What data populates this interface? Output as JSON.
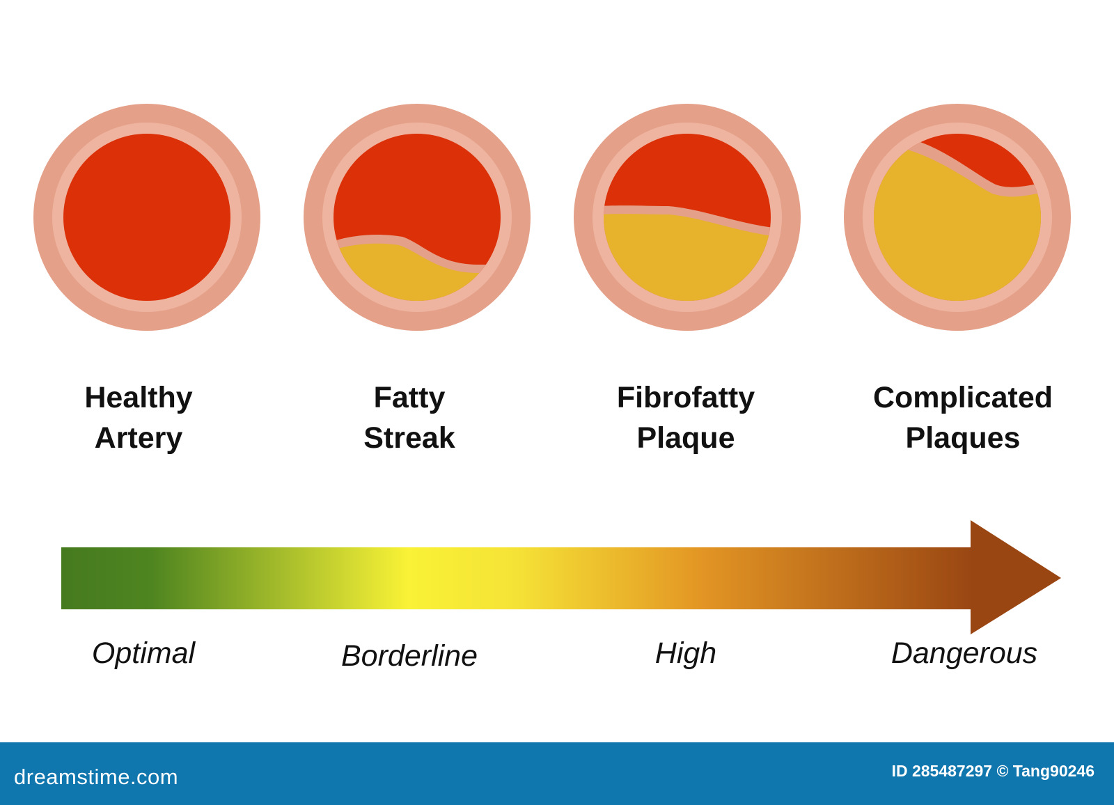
{
  "stages": [
    {
      "line1": "Healthy",
      "line2": "Artery",
      "plaque_fraction": 0
    },
    {
      "line1": "Fatty",
      "line2": "Streak",
      "plaque_fraction": 0.3
    },
    {
      "line1": "Fibrofatty",
      "line2": "Plaque",
      "plaque_fraction": 0.55
    },
    {
      "line1": "Complicated",
      "line2": "Plaques",
      "plaque_fraction": 0.85
    }
  ],
  "scale": {
    "levels": [
      "Optimal",
      "Borderline",
      "High",
      "Dangerous"
    ],
    "gradient_colors": [
      "#467a1f",
      "#f9f236",
      "#e39624",
      "#9a4613"
    ]
  },
  "colors": {
    "wall": "#e4a088",
    "inner_wall": "#eeb4a0",
    "blood": "#dc3008",
    "plaque": "#e7b22c",
    "footer": "#1076ae"
  },
  "footer": {
    "brand": "dreamstime.com",
    "credit": "ID 285487297 © Tang90246"
  }
}
